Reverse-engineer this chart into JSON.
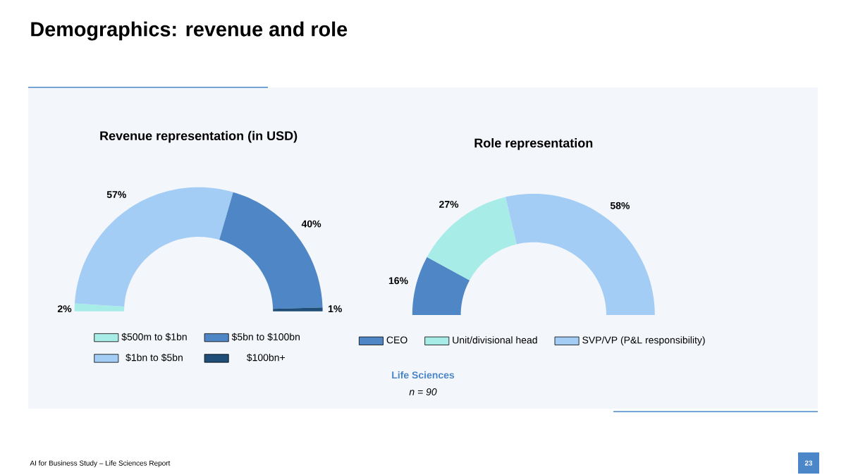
{
  "chart_data": [
    {
      "type": "donut",
      "title": "Revenue representation (in USD)",
      "categories": [
        "$500m to $1bn",
        "$1bn to $5bn",
        "$5bn to $100bn",
        "$100bn+"
      ],
      "values": [
        2,
        57,
        40,
        1
      ],
      "value_labels": [
        "2%",
        "57%",
        "40%",
        "1%"
      ],
      "colors": [
        "#a8ece8",
        "#a3cdf4",
        "#4f86c6",
        "#1f4e79"
      ],
      "legend": "bottom",
      "annotations": [
        "Demographics: revenue and role",
        "Life Sciences",
        "n = 90",
        "AI for Business Study – Life Sciences Report",
        "23"
      ]
    },
    {
      "type": "donut",
      "title": "Role representation",
      "categories": [
        "CEO",
        "Unit/divisional head",
        "SVP/VP (P&L responsibility)"
      ],
      "values": [
        16,
        27,
        58
      ],
      "value_labels": [
        "16%",
        "27%",
        "58%"
      ],
      "colors": [
        "#4f86c6",
        "#a8ece8",
        "#a3cdf4"
      ],
      "legend": "bottom"
    }
  ]
}
